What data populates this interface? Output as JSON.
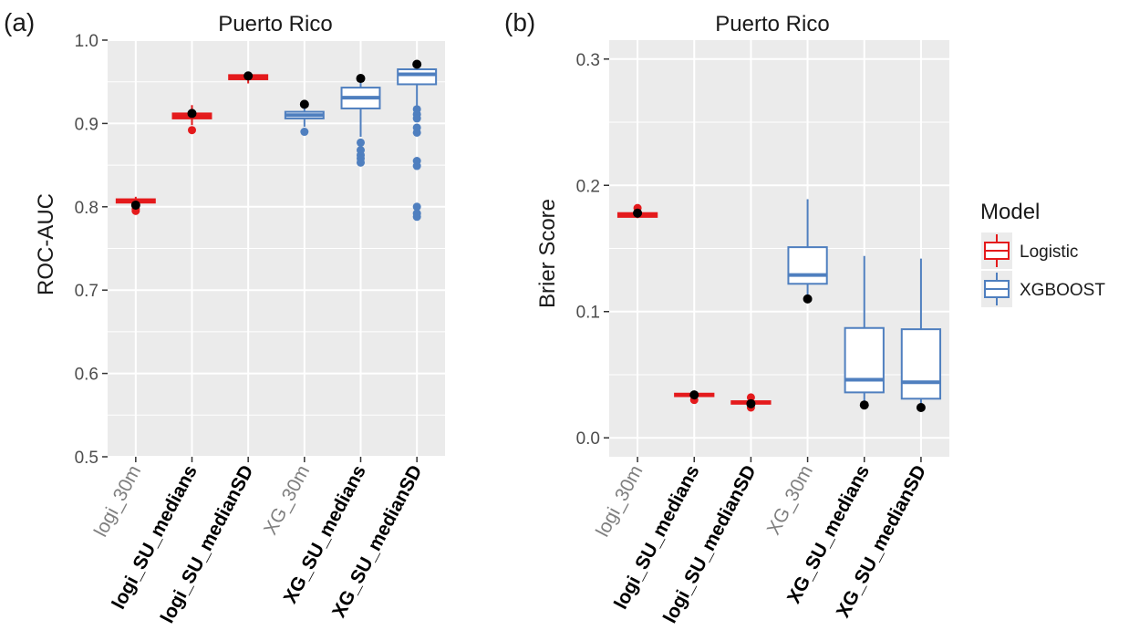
{
  "colors": {
    "panel_bg": "#ebebeb",
    "grid": "#ffffff",
    "logistic": "#e41a1c",
    "xgboost": "#4f7fbf",
    "point": "#000000"
  },
  "legend": {
    "title": "Model",
    "items": [
      {
        "label": "Logistic",
        "color": "#e41a1c"
      },
      {
        "label": "XGBOOST",
        "color": "#4f7fbf"
      }
    ]
  },
  "chart_data": [
    {
      "type": "boxplot",
      "panel_tag": "(a)",
      "title": "Puerto Rico",
      "ylabel": "ROC-AUC",
      "ylim": [
        0.5,
        1.0
      ],
      "yticks": [
        "0.5",
        "0.6",
        "0.7",
        "0.8",
        "0.9",
        "1.0"
      ],
      "categories": [
        "logi_30m",
        "logi_SU_medians",
        "logi_SU_medianSD",
        "XG_30m",
        "XG_SU_medians",
        "XG_SU_medianSD"
      ],
      "category_bold": [
        false,
        true,
        true,
        false,
        true,
        true
      ],
      "boxes": [
        {
          "model": "Logistic",
          "q1": 0.805,
          "median": 0.807,
          "q3": 0.809,
          "whisker_low": 0.8,
          "whisker_high": 0.812,
          "outliers": [
            0.795,
            0.797
          ],
          "point": 0.802
        },
        {
          "model": "Logistic",
          "q1": 0.906,
          "median": 0.909,
          "q3": 0.912,
          "whisker_low": 0.898,
          "whisker_high": 0.922,
          "outliers": [
            0.892
          ],
          "point": 0.912
        },
        {
          "model": "Logistic",
          "q1": 0.953,
          "median": 0.956,
          "q3": 0.958,
          "whisker_low": 0.948,
          "whisker_high": 0.962,
          "outliers": [],
          "point": 0.957
        },
        {
          "model": "XGBOOST",
          "q1": 0.906,
          "median": 0.91,
          "q3": 0.914,
          "whisker_low": 0.896,
          "whisker_high": 0.918,
          "outliers": [
            0.89
          ],
          "point": 0.923
        },
        {
          "model": "XGBOOST",
          "q1": 0.918,
          "median": 0.931,
          "q3": 0.943,
          "whisker_low": 0.884,
          "whisker_high": 0.95,
          "outliers": [
            0.877,
            0.868,
            0.862,
            0.858,
            0.853
          ],
          "point": 0.954
        },
        {
          "model": "XGBOOST",
          "q1": 0.947,
          "median": 0.959,
          "q3": 0.965,
          "whisker_low": 0.92,
          "whisker_high": 0.97,
          "outliers": [
            0.917,
            0.911,
            0.906,
            0.895,
            0.889,
            0.855,
            0.849,
            0.8,
            0.792,
            0.788
          ],
          "point": 0.971
        }
      ]
    },
    {
      "type": "boxplot",
      "panel_tag": "(b)",
      "title": "Puerto Rico",
      "ylabel": "Brier Score",
      "ylim": [
        -0.015,
        0.315
      ],
      "yticks": [
        "0.0",
        "0.1",
        "0.2",
        "0.3"
      ],
      "categories": [
        "logi_30m",
        "logi_SU_medians",
        "logi_SU_medianSD",
        "XG_30m",
        "XG_SU_medians",
        "XG_SU_medianSD"
      ],
      "category_bold": [
        false,
        true,
        true,
        false,
        true,
        true
      ],
      "boxes": [
        {
          "model": "Logistic",
          "q1": 0.175,
          "median": 0.176,
          "q3": 0.178,
          "whisker_low": 0.174,
          "whisker_high": 0.18,
          "outliers": [
            0.182
          ],
          "point": 0.178
        },
        {
          "model": "Logistic",
          "q1": 0.033,
          "median": 0.034,
          "q3": 0.035,
          "whisker_low": 0.032,
          "whisker_high": 0.036,
          "outliers": [
            0.03
          ],
          "point": 0.034
        },
        {
          "model": "Logistic",
          "q1": 0.027,
          "median": 0.028,
          "q3": 0.029,
          "whisker_low": 0.026,
          "whisker_high": 0.03,
          "outliers": [
            0.024,
            0.032
          ],
          "point": 0.027
        },
        {
          "model": "XGBOOST",
          "q1": 0.122,
          "median": 0.129,
          "q3": 0.151,
          "whisker_low": 0.11,
          "whisker_high": 0.189,
          "outliers": [],
          "point": 0.11
        },
        {
          "model": "XGBOOST",
          "q1": 0.036,
          "median": 0.046,
          "q3": 0.087,
          "whisker_low": 0.029,
          "whisker_high": 0.144,
          "outliers": [],
          "point": 0.026
        },
        {
          "model": "XGBOOST",
          "q1": 0.031,
          "median": 0.044,
          "q3": 0.086,
          "whisker_low": 0.027,
          "whisker_high": 0.142,
          "outliers": [],
          "point": 0.024
        }
      ]
    }
  ]
}
